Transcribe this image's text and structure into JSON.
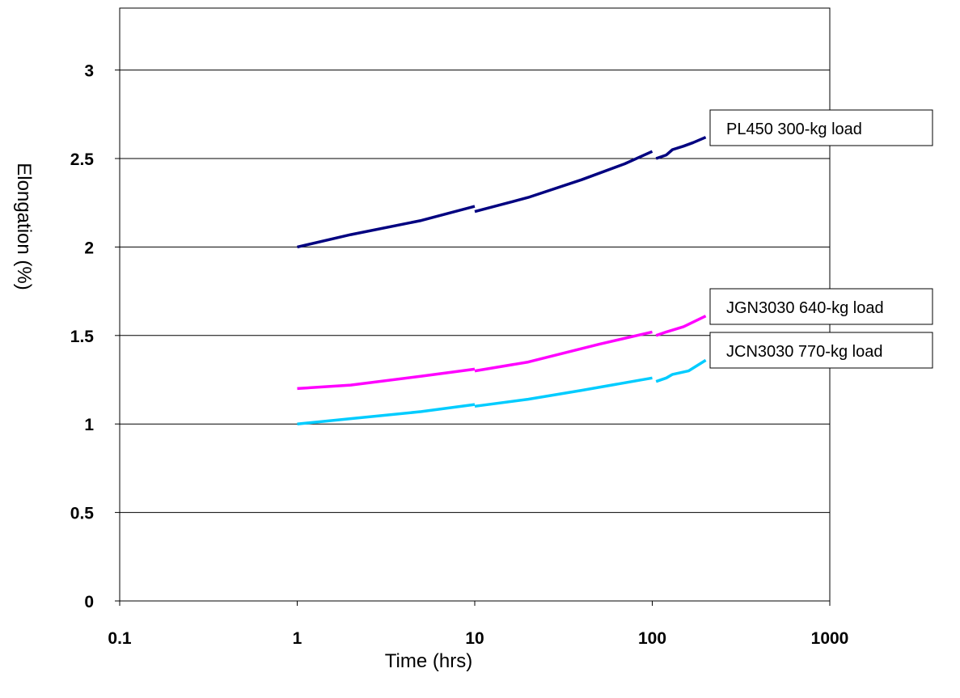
{
  "chart_data": {
    "type": "line",
    "x_scale": "log",
    "xlabel": "Time (hrs)",
    "ylabel": "Elongation (%)",
    "xlim": [
      0.1,
      1000
    ],
    "ylim": [
      0,
      3.35
    ],
    "x_ticks": [
      "0.1",
      "1",
      "10",
      "100",
      "1000"
    ],
    "y_ticks": [
      "0",
      "0.5",
      "1",
      "1.5",
      "2",
      "2.5",
      "3"
    ],
    "grid": "horizontal",
    "series": [
      {
        "name": "PL450 300-kg load",
        "color": "#000080",
        "segments": [
          [
            [
              1,
              2.0
            ],
            [
              2,
              2.07
            ],
            [
              5,
              2.15
            ],
            [
              10,
              2.23
            ]
          ],
          [
            [
              10,
              2.2
            ],
            [
              20,
              2.28
            ],
            [
              40,
              2.38
            ],
            [
              70,
              2.47
            ],
            [
              100,
              2.54
            ]
          ],
          [
            [
              105,
              2.5
            ],
            [
              120,
              2.52
            ],
            [
              130,
              2.55
            ],
            [
              150,
              2.57
            ],
            [
              170,
              2.59
            ],
            [
              200,
              2.62
            ]
          ]
        ]
      },
      {
        "name": "JGN3030 640-kg load",
        "color": "#ff00ff",
        "segments": [
          [
            [
              1,
              1.2
            ],
            [
              2,
              1.22
            ],
            [
              5,
              1.27
            ],
            [
              10,
              1.31
            ]
          ],
          [
            [
              10,
              1.3
            ],
            [
              20,
              1.35
            ],
            [
              50,
              1.45
            ],
            [
              100,
              1.52
            ]
          ],
          [
            [
              105,
              1.5
            ],
            [
              120,
              1.52
            ],
            [
              150,
              1.55
            ],
            [
              200,
              1.61
            ]
          ]
        ]
      },
      {
        "name": "JCN3030 770-kg load",
        "color": "#00ccff",
        "segments": [
          [
            [
              1,
              1.0
            ],
            [
              2,
              1.03
            ],
            [
              5,
              1.07
            ],
            [
              10,
              1.11
            ]
          ],
          [
            [
              10,
              1.1
            ],
            [
              20,
              1.14
            ],
            [
              40,
              1.19
            ],
            [
              100,
              1.26
            ]
          ],
          [
            [
              105,
              1.24
            ],
            [
              120,
              1.26
            ],
            [
              130,
              1.28
            ],
            [
              160,
              1.3
            ],
            [
              200,
              1.36
            ]
          ]
        ]
      }
    ]
  }
}
